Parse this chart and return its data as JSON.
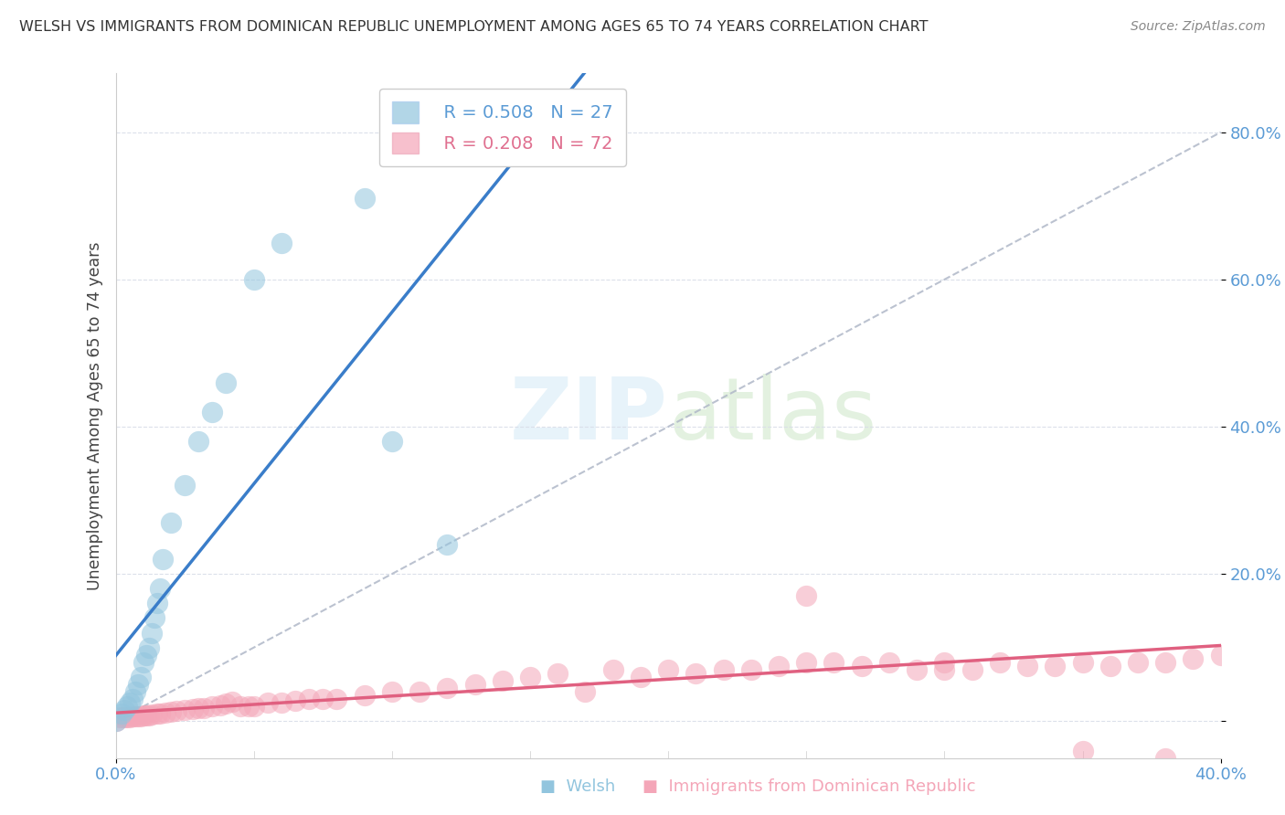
{
  "title": "WELSH VS IMMIGRANTS FROM DOMINICAN REPUBLIC UNEMPLOYMENT AMONG AGES 65 TO 74 YEARS CORRELATION CHART",
  "source": "Source: ZipAtlas.com",
  "ylabel": "Unemployment Among Ages 65 to 74 years",
  "xlim": [
    0.0,
    0.4
  ],
  "ylim": [
    -0.05,
    0.88
  ],
  "welsh_R": 0.508,
  "welsh_N": 27,
  "dominican_R": 0.208,
  "dominican_N": 72,
  "welsh_color": "#92c5de",
  "dominican_color": "#f4a6b8",
  "welsh_line_color": "#3a7dc9",
  "dominican_line_color": "#e06080",
  "ref_line_color": "#b0b8c8",
  "background_color": "#ffffff",
  "grid_color": "#d8dde8",
  "welsh_x": [
    0.0,
    0.002,
    0.003,
    0.004,
    0.005,
    0.006,
    0.007,
    0.008,
    0.009,
    0.01,
    0.011,
    0.012,
    0.013,
    0.014,
    0.015,
    0.016,
    0.017,
    0.02,
    0.025,
    0.03,
    0.035,
    0.04,
    0.05,
    0.06,
    0.09,
    0.1,
    0.12
  ],
  "welsh_y": [
    0.0,
    0.01,
    0.015,
    0.02,
    0.025,
    0.03,
    0.04,
    0.05,
    0.06,
    0.08,
    0.09,
    0.1,
    0.12,
    0.14,
    0.16,
    0.18,
    0.22,
    0.27,
    0.32,
    0.38,
    0.42,
    0.46,
    0.6,
    0.65,
    0.71,
    0.38,
    0.24
  ],
  "dominican_x": [
    0.0,
    0.001,
    0.002,
    0.003,
    0.004,
    0.005,
    0.006,
    0.007,
    0.008,
    0.009,
    0.01,
    0.011,
    0.012,
    0.013,
    0.015,
    0.016,
    0.018,
    0.02,
    0.022,
    0.025,
    0.028,
    0.03,
    0.032,
    0.035,
    0.038,
    0.04,
    0.042,
    0.045,
    0.048,
    0.05,
    0.055,
    0.06,
    0.065,
    0.07,
    0.075,
    0.08,
    0.09,
    0.1,
    0.11,
    0.12,
    0.13,
    0.14,
    0.15,
    0.16,
    0.17,
    0.18,
    0.19,
    0.2,
    0.21,
    0.22,
    0.23,
    0.24,
    0.25,
    0.26,
    0.27,
    0.28,
    0.29,
    0.3,
    0.31,
    0.32,
    0.33,
    0.34,
    0.35,
    0.36,
    0.37,
    0.38,
    0.39,
    0.4,
    0.25,
    0.3,
    0.35,
    0.38
  ],
  "dominican_y": [
    0.0,
    0.005,
    0.005,
    0.005,
    0.005,
    0.005,
    0.006,
    0.006,
    0.007,
    0.007,
    0.008,
    0.008,
    0.008,
    0.009,
    0.01,
    0.01,
    0.012,
    0.013,
    0.014,
    0.015,
    0.016,
    0.018,
    0.018,
    0.02,
    0.022,
    0.024,
    0.026,
    0.02,
    0.02,
    0.02,
    0.025,
    0.025,
    0.028,
    0.03,
    0.03,
    0.03,
    0.035,
    0.04,
    0.04,
    0.045,
    0.05,
    0.055,
    0.06,
    0.065,
    0.04,
    0.07,
    0.06,
    0.07,
    0.065,
    0.07,
    0.07,
    0.075,
    0.08,
    0.08,
    0.075,
    0.08,
    0.07,
    0.08,
    0.07,
    0.08,
    0.075,
    0.075,
    0.08,
    0.075,
    0.08,
    0.08,
    0.085,
    0.09,
    0.17,
    0.07,
    -0.04,
    -0.05
  ]
}
